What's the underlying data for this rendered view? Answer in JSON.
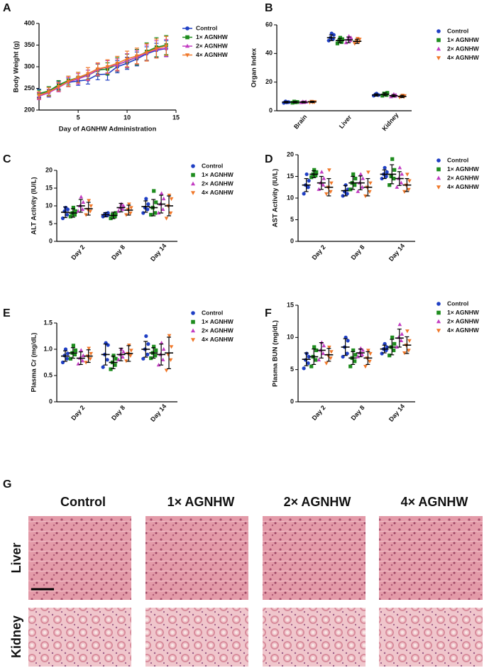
{
  "chart_data": [
    {
      "type": "line",
      "label": "A",
      "x_label": "Day of AGNHW Administration",
      "y_label": "Body Weight (g)",
      "x": [
        1,
        2,
        3,
        4,
        5,
        6,
        7,
        8,
        9,
        10,
        11,
        12,
        13,
        14
      ],
      "xlim": [
        1,
        15
      ],
      "xticks": [
        5,
        10,
        15
      ],
      "ylim": [
        200,
        400
      ],
      "yticks": [
        200,
        250,
        300,
        350,
        400
      ],
      "legend": "right",
      "series": [
        {
          "name": "Control",
          "color": "#1f3fc4",
          "marker": "circle",
          "values": [
            238,
            242,
            256,
            264,
            267,
            270,
            282,
            283,
            300,
            308,
            318,
            330,
            338,
            342
          ],
          "errors": [
            10,
            12,
            10,
            10,
            10,
            10,
            12,
            14,
            14,
            14,
            16,
            16,
            16,
            18
          ]
        },
        {
          "name": "1× AGNHW",
          "color": "#1e8c1e",
          "marker": "square",
          "values": [
            238,
            244,
            258,
            268,
            275,
            280,
            292,
            295,
            305,
            313,
            322,
            335,
            345,
            350
          ],
          "errors": [
            8,
            10,
            10,
            10,
            12,
            12,
            14,
            14,
            16,
            16,
            18,
            20,
            22,
            22
          ]
        },
        {
          "name": "2× AGNHW",
          "color": "#c23cc2",
          "marker": "triangle-up",
          "values": [
            232,
            240,
            252,
            265,
            272,
            280,
            293,
            300,
            304,
            314,
            322,
            332,
            340,
            343
          ],
          "errors": [
            8,
            8,
            10,
            10,
            12,
            12,
            14,
            14,
            14,
            16,
            16,
            18,
            20,
            20
          ]
        },
        {
          "name": "4× AGNHW",
          "color": "#f0782a",
          "marker": "triangle-down",
          "values": [
            234,
            242,
            254,
            266,
            275,
            284,
            295,
            300,
            308,
            318,
            325,
            333,
            342,
            348
          ],
          "errors": [
            8,
            10,
            10,
            12,
            12,
            14,
            14,
            16,
            16,
            18,
            18,
            20,
            22,
            22
          ]
        }
      ]
    },
    {
      "type": "dot",
      "label": "B",
      "y_label": "Organ Index",
      "categories": [
        "Brain",
        "Liver",
        "Kidney"
      ],
      "ylim": [
        0,
        60
      ],
      "yticks": [
        0,
        20,
        40,
        60
      ],
      "legend": "right",
      "series": [
        {
          "name": "Control",
          "color": "#1f3fc4",
          "marker": "circle",
          "values": [
            6,
            51,
            11
          ],
          "errors": [
            0.5,
            2,
            0.8
          ],
          "points": [
            [
              5.5,
              6,
              6.5,
              6,
              5.8
            ],
            [
              49,
              50,
              51,
              53,
              54
            ],
            [
              10.5,
              11,
              11.5,
              11,
              12
            ]
          ]
        },
        {
          "name": "1× AGNHW",
          "color": "#1e8c1e",
          "marker": "square",
          "values": [
            6,
            49,
            11.5
          ],
          "errors": [
            0.5,
            1.5,
            1
          ],
          "points": [
            [
              5.6,
              6,
              6.4,
              6.1,
              5.9
            ],
            [
              47,
              48,
              49,
              50,
              51
            ],
            [
              10.5,
              11,
              12,
              12.5,
              11.5
            ]
          ]
        },
        {
          "name": "2× AGNHW",
          "color": "#c23cc2",
          "marker": "triangle-up",
          "values": [
            6,
            49.5,
            10.5
          ],
          "errors": [
            0.5,
            2,
            0.8
          ],
          "points": [
            [
              5.7,
              6,
              6.3,
              6.2,
              5.8
            ],
            [
              47.5,
              49,
              50,
              51,
              52
            ],
            [
              9.8,
              10.2,
              10.5,
              11,
              11.5
            ]
          ]
        },
        {
          "name": "4× AGNHW",
          "color": "#f0782a",
          "marker": "triangle-down",
          "values": [
            6.2,
            48.5,
            10
          ],
          "errors": [
            0.5,
            1.5,
            0.8
          ],
          "points": [
            [
              5.8,
              6.1,
              6.5,
              6.3,
              6
            ],
            [
              47,
              48,
              49,
              50,
              50.5
            ],
            [
              9.5,
              9.8,
              10,
              10.5,
              10.8
            ]
          ]
        }
      ]
    },
    {
      "type": "dot",
      "label": "C",
      "y_label": "ALT Activity (IU/L)",
      "categories": [
        "Day 2",
        "Day 8",
        "Day 14"
      ],
      "ylim": [
        0,
        20
      ],
      "yticks": [
        0,
        5,
        10,
        15,
        20
      ],
      "legend": "right",
      "series": [
        {
          "name": "Control",
          "color": "#1f3fc4",
          "marker": "circle",
          "values": [
            8.2,
            7.5,
            9.8
          ],
          "errors": [
            1.5,
            0.6,
            1.6
          ],
          "points": [
            [
              6.5,
              7.5,
              8.5,
              9,
              9.5
            ],
            [
              7,
              7.3,
              7.6,
              8,
              7.8
            ],
            [
              8,
              9,
              9.5,
              10.5,
              12
            ]
          ]
        },
        {
          "name": "1× AGNHW",
          "color": "#1e8c1e",
          "marker": "square",
          "values": [
            8,
            7.3,
            9.5
          ],
          "errors": [
            1.2,
            0.9,
            2.3
          ],
          "points": [
            [
              7,
              7.5,
              8,
              8.5,
              9.5
            ],
            [
              6.5,
              7,
              7.5,
              8,
              7.2
            ],
            [
              7.5,
              8,
              9.5,
              11,
              14.2
            ]
          ]
        },
        {
          "name": "2× AGNHW",
          "color": "#c23cc2",
          "marker": "triangle-up",
          "values": [
            10,
            9.5,
            10.5
          ],
          "errors": [
            1.8,
            1.2,
            2.5
          ],
          "points": [
            [
              8.5,
              9,
              10,
              11,
              12.5
            ],
            [
              8.5,
              9,
              9.5,
              10,
              10.5
            ],
            [
              8,
              9,
              10.5,
              12,
              13.5
            ]
          ]
        },
        {
          "name": "4× AGNHW",
          "color": "#f0782a",
          "marker": "triangle-down",
          "values": [
            9.2,
            8.8,
            10
          ],
          "errors": [
            1.8,
            1.4,
            2.8
          ],
          "points": [
            [
              7.5,
              8.5,
              9,
              10,
              11.5
            ],
            [
              7.5,
              8,
              9,
              9.5,
              10.5
            ],
            [
              6.5,
              8,
              10,
              12,
              13
            ]
          ]
        }
      ]
    },
    {
      "type": "dot",
      "label": "D",
      "y_label": "AST Activity (IU/L)",
      "categories": [
        "Day 2",
        "Day 8",
        "Day 14"
      ],
      "ylim": [
        0,
        20
      ],
      "yticks": [
        0,
        5,
        10,
        15,
        20
      ],
      "legend": "right",
      "series": [
        {
          "name": "Control",
          "color": "#1f3fc4",
          "marker": "circle",
          "values": [
            13,
            11.7,
            15.5
          ],
          "errors": [
            1.5,
            1.2,
            1
          ],
          "points": [
            [
              11,
              12.5,
              13,
              14,
              15.5
            ],
            [
              10.5,
              11,
              11.5,
              12,
              13
            ],
            [
              14.5,
              15,
              15.5,
              16,
              17
            ]
          ]
        },
        {
          "name": "1× AGNHW",
          "color": "#1e8c1e",
          "marker": "square",
          "values": [
            15.5,
            13.5,
            15.5
          ],
          "errors": [
            0.8,
            1.5,
            2.2
          ],
          "points": [
            [
              14.8,
              15.2,
              15.5,
              16,
              16.5
            ],
            [
              12,
              13,
              13.5,
              14.5,
              15.5
            ],
            [
              13,
              14.5,
              15,
              16.5,
              19
            ]
          ]
        },
        {
          "name": "2× AGNHW",
          "color": "#c23cc2",
          "marker": "triangle-up",
          "values": [
            13.5,
            13.5,
            14.5
          ],
          "errors": [
            1.5,
            1.6,
            1.6
          ],
          "points": [
            [
              12,
              13,
              13.5,
              14.5,
              16
            ],
            [
              11.5,
              12.5,
              13.5,
              14.5,
              15.5
            ],
            [
              12.5,
              13.5,
              14.5,
              15.5,
              17
            ]
          ]
        },
        {
          "name": "4× AGNHW",
          "color": "#f0782a",
          "marker": "triangle-down",
          "values": [
            12.5,
            12.5,
            13
          ],
          "errors": [
            2,
            2,
            1.5
          ],
          "points": [
            [
              11,
              11.5,
              12.5,
              13.5,
              16.5
            ],
            [
              10.5,
              11.5,
              12.5,
              13.5,
              16
            ],
            [
              11.5,
              12,
              13,
              14,
              15.5
            ]
          ]
        }
      ]
    },
    {
      "type": "dot",
      "label": "E",
      "y_label": "Plasma Cr (mg/dL)",
      "categories": [
        "Day 2",
        "Day 8",
        "Day 14"
      ],
      "ylim": [
        0,
        1.5
      ],
      "yticks": [
        0,
        0.5,
        {
          "value": 1,
          "label": "1.0"
        },
        1.5
      ],
      "legend": "right",
      "series": [
        {
          "name": "Control",
          "color": "#1f3fc4",
          "marker": "circle",
          "values": [
            0.87,
            0.9,
            1.0
          ],
          "errors": [
            0.1,
            0.2,
            0.15
          ],
          "points": [
            [
              0.75,
              0.82,
              0.88,
              0.92,
              1.0
            ],
            [
              0.66,
              0.8,
              0.9,
              1.08,
              1.12
            ],
            [
              0.82,
              0.9,
              1.0,
              1.1,
              1.25
            ]
          ]
        },
        {
          "name": "1× AGNHW",
          "color": "#1e8c1e",
          "marker": "square",
          "values": [
            0.93,
            0.75,
            0.93
          ],
          "errors": [
            0.1,
            0.12,
            0.1
          ],
          "points": [
            [
              0.82,
              0.9,
              0.93,
              0.98,
              1.07
            ],
            [
              0.62,
              0.7,
              0.75,
              0.82,
              0.88
            ],
            [
              0.83,
              0.88,
              0.93,
              0.98,
              1.05
            ]
          ]
        },
        {
          "name": "2× AGNHW",
          "color": "#c23cc2",
          "marker": "triangle-up",
          "values": [
            0.83,
            0.9,
            0.9
          ],
          "errors": [
            0.12,
            0.12,
            0.2
          ],
          "points": [
            [
              0.72,
              0.78,
              0.83,
              0.88,
              0.98
            ],
            [
              0.8,
              0.85,
              0.9,
              0.95,
              1.0
            ],
            [
              0.7,
              0.8,
              0.9,
              1.0,
              1.12
            ]
          ]
        },
        {
          "name": "4× AGNHW",
          "color": "#f0782a",
          "marker": "triangle-down",
          "values": [
            0.87,
            0.92,
            0.93
          ],
          "errors": [
            0.12,
            0.15,
            0.3
          ],
          "points": [
            [
              0.75,
              0.82,
              0.87,
              0.92,
              1.02
            ],
            [
              0.78,
              0.88,
              0.92,
              0.98,
              1.08
            ],
            [
              0.6,
              0.8,
              0.9,
              1.05,
              1.26
            ]
          ]
        }
      ]
    },
    {
      "type": "dot",
      "label": "F",
      "y_label": "Plasma BUN (mg/dL)",
      "categories": [
        "Day 2",
        "Day 8",
        "Day 14"
      ],
      "ylim": [
        0,
        15
      ],
      "yticks": [
        0,
        5,
        10,
        15
      ],
      "legend": "right",
      "series": [
        {
          "name": "Control",
          "color": "#1f3fc4",
          "marker": "circle",
          "values": [
            6.6,
            8.5,
            8.2
          ],
          "errors": [
            1,
            1.3,
            0.6
          ],
          "points": [
            [
              5.2,
              6,
              6.5,
              7,
              7.5
            ],
            [
              7,
              7.5,
              8.5,
              9.5,
              10
            ],
            [
              7.5,
              8,
              8.2,
              8.5,
              9
            ]
          ]
        },
        {
          "name": "1× AGNHW",
          "color": "#1e8c1e",
          "marker": "square",
          "values": [
            7,
            6.8,
            8.5
          ],
          "errors": [
            1.2,
            1,
            1.2
          ],
          "points": [
            [
              5.5,
              6.5,
              7,
              8,
              8.5
            ],
            [
              5.5,
              6.3,
              6.8,
              7.3,
              8
            ],
            [
              7.2,
              8,
              8.5,
              9,
              10
            ]
          ]
        },
        {
          "name": "2× AGNHW",
          "color": "#c23cc2",
          "marker": "triangle-up",
          "values": [
            8,
            7.6,
            9.9
          ],
          "errors": [
            1.2,
            0.6,
            1.4
          ],
          "points": [
            [
              6.5,
              7.5,
              8,
              8.7,
              9.2
            ],
            [
              7,
              7.3,
              7.6,
              8,
              8.3
            ],
            [
              8.5,
              9.5,
              10,
              10.5,
              12
            ]
          ]
        },
        {
          "name": "4× AGNHW",
          "color": "#f0782a",
          "marker": "triangle-down",
          "values": [
            7.3,
            6.8,
            8.8
          ],
          "errors": [
            1,
            1,
            1.3
          ],
          "points": [
            [
              6,
              6.8,
              7.2,
              7.8,
              8.5
            ],
            [
              5.5,
              6.3,
              6.8,
              7.5,
              8
            ],
            [
              7.6,
              8,
              8.8,
              9.5,
              11
            ]
          ]
        }
      ]
    }
  ],
  "histology": {
    "label": "G",
    "columns": [
      "Control",
      "1× AGNHW",
      "2× AGNHW",
      "4× AGNHW"
    ],
    "rows": [
      "Liver",
      "Kidney"
    ]
  }
}
